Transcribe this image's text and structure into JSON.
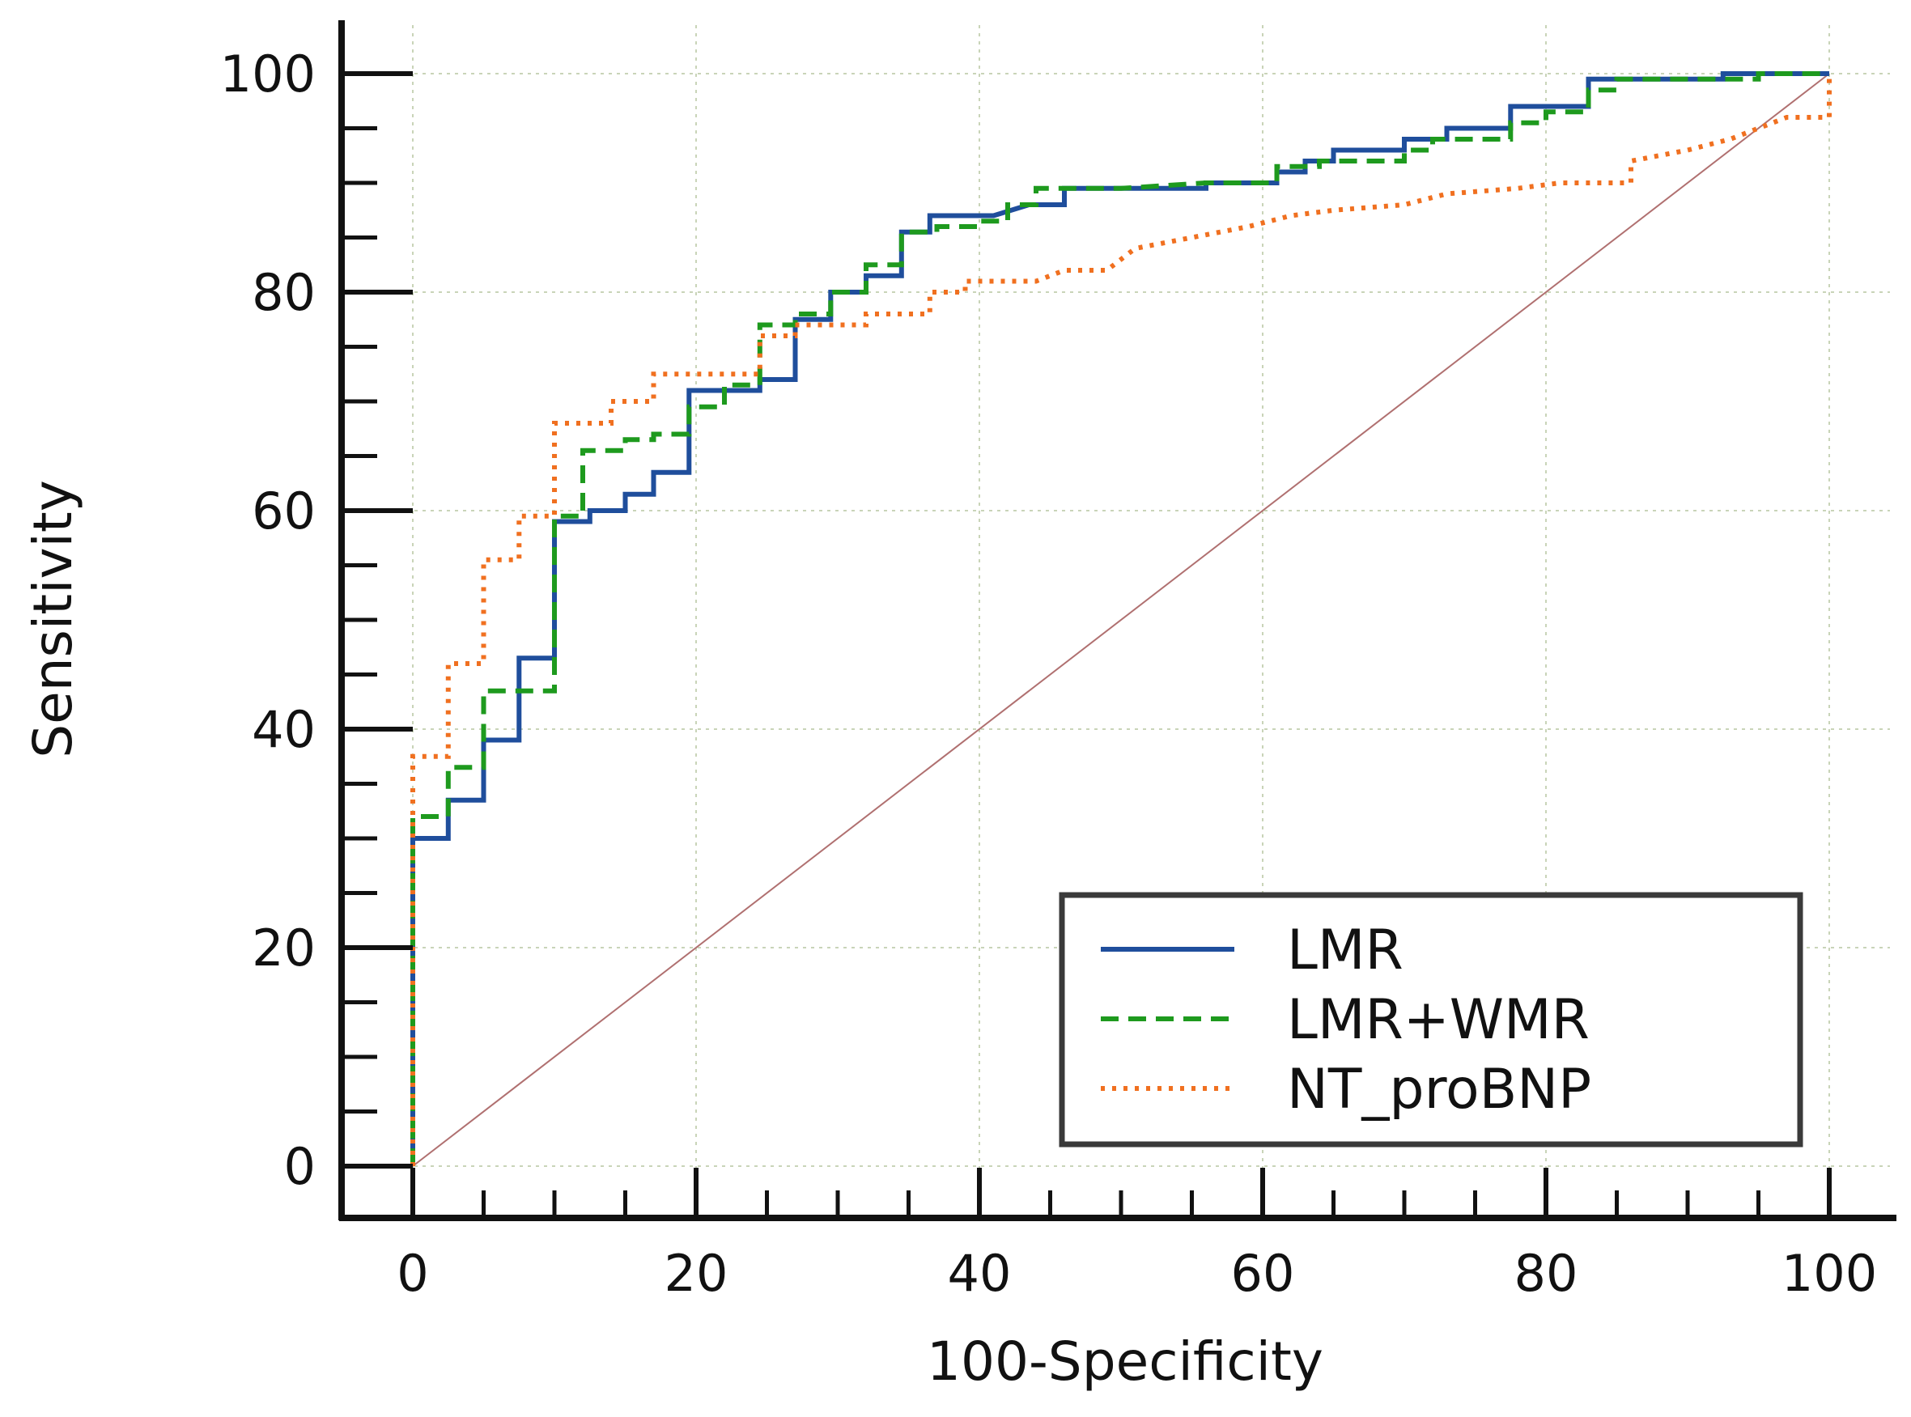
{
  "chart_data": {
    "type": "line",
    "xlabel": "100-Specificity",
    "ylabel": "Sensitivity",
    "xlim": [
      0,
      100
    ],
    "ylim": [
      0,
      100
    ],
    "xticks": [
      0,
      20,
      40,
      60,
      80,
      100
    ],
    "yticks": [
      0,
      20,
      40,
      60,
      80,
      100
    ],
    "grid": true,
    "legend_position": "bottom-right",
    "reference_line": {
      "x": [
        0,
        100
      ],
      "y": [
        0,
        100
      ],
      "color": "#b07070"
    },
    "series": [
      {
        "name": "LMR",
        "color": "#1f4e9c",
        "style": "solid",
        "points": [
          [
            0,
            0
          ],
          [
            0,
            30
          ],
          [
            2.5,
            30
          ],
          [
            2.5,
            33.5
          ],
          [
            5,
            33.5
          ],
          [
            5,
            39
          ],
          [
            7.5,
            39
          ],
          [
            7.5,
            46.5
          ],
          [
            10,
            46.5
          ],
          [
            10,
            59
          ],
          [
            12.5,
            59
          ],
          [
            12.5,
            60
          ],
          [
            15,
            60
          ],
          [
            15,
            61.5
          ],
          [
            17,
            61.5
          ],
          [
            17,
            63.5
          ],
          [
            19.5,
            63.5
          ],
          [
            19.5,
            71
          ],
          [
            22.5,
            71
          ],
          [
            24.5,
            71
          ],
          [
            24.5,
            72
          ],
          [
            27,
            72
          ],
          [
            27,
            77.5
          ],
          [
            29.5,
            77.5
          ],
          [
            29.5,
            80
          ],
          [
            32,
            80
          ],
          [
            32,
            81.5
          ],
          [
            34.5,
            81.5
          ],
          [
            34.5,
            85.5
          ],
          [
            36.5,
            85.5
          ],
          [
            36.5,
            87
          ],
          [
            41,
            87
          ],
          [
            43.5,
            88
          ],
          [
            46,
            88
          ],
          [
            46,
            89.5
          ],
          [
            56,
            89.5
          ],
          [
            56,
            90
          ],
          [
            61,
            90
          ],
          [
            61,
            91
          ],
          [
            63,
            91
          ],
          [
            63,
            92
          ],
          [
            65,
            92
          ],
          [
            65,
            93
          ],
          [
            70,
            93
          ],
          [
            70,
            94
          ],
          [
            73,
            94
          ],
          [
            73,
            95
          ],
          [
            77.5,
            95
          ],
          [
            77.5,
            97
          ],
          [
            83,
            97
          ],
          [
            83,
            99.5
          ],
          [
            92.5,
            99.5
          ],
          [
            92.5,
            100
          ],
          [
            100,
            100
          ]
        ]
      },
      {
        "name": "LMR+WMR",
        "color": "#1e9a1e",
        "style": "dashed",
        "points": [
          [
            0,
            0
          ],
          [
            0,
            32
          ],
          [
            2.5,
            32
          ],
          [
            2.5,
            36.5
          ],
          [
            5,
            36.5
          ],
          [
            5,
            43.5
          ],
          [
            7.5,
            43.5
          ],
          [
            10,
            43.5
          ],
          [
            10,
            59.5
          ],
          [
            12,
            59.5
          ],
          [
            12,
            65.5
          ],
          [
            15,
            65.5
          ],
          [
            15,
            66.5
          ],
          [
            17,
            66.5
          ],
          [
            17,
            67
          ],
          [
            19.5,
            67
          ],
          [
            19.5,
            69.5
          ],
          [
            22,
            69.5
          ],
          [
            22,
            71.5
          ],
          [
            24.5,
            71.5
          ],
          [
            24.5,
            77
          ],
          [
            27,
            77
          ],
          [
            27,
            78
          ],
          [
            29.5,
            78
          ],
          [
            29.5,
            80
          ],
          [
            32,
            80
          ],
          [
            32,
            82.5
          ],
          [
            34.5,
            82.5
          ],
          [
            34.5,
            85.5
          ],
          [
            37,
            85.5
          ],
          [
            37,
            86
          ],
          [
            40,
            86
          ],
          [
            40,
            86.5
          ],
          [
            42,
            86.5
          ],
          [
            42,
            88
          ],
          [
            44,
            88
          ],
          [
            44,
            89.5
          ],
          [
            50,
            89.5
          ],
          [
            56,
            90
          ],
          [
            61,
            90
          ],
          [
            61,
            91.5
          ],
          [
            64,
            91.5
          ],
          [
            64,
            92
          ],
          [
            70,
            92
          ],
          [
            70,
            93
          ],
          [
            72,
            93
          ],
          [
            72,
            94
          ],
          [
            77.5,
            94
          ],
          [
            77.5,
            95.5
          ],
          [
            80,
            95.5
          ],
          [
            80,
            96.5
          ],
          [
            83,
            96.5
          ],
          [
            83,
            98.5
          ],
          [
            85,
            98.5
          ],
          [
            85,
            99.5
          ],
          [
            95,
            99.5
          ],
          [
            95,
            100
          ],
          [
            100,
            100
          ]
        ]
      },
      {
        "name": "NT_proBNP",
        "color": "#f07020",
        "style": "dotted",
        "points": [
          [
            0,
            0
          ],
          [
            0,
            37.5
          ],
          [
            2.5,
            37.5
          ],
          [
            2.5,
            46
          ],
          [
            5,
            46
          ],
          [
            5,
            55.5
          ],
          [
            7.5,
            55.5
          ],
          [
            7.5,
            59.5
          ],
          [
            10,
            59.5
          ],
          [
            10,
            68
          ],
          [
            14,
            68
          ],
          [
            14,
            70
          ],
          [
            17,
            70
          ],
          [
            17,
            72.5
          ],
          [
            24.5,
            72.5
          ],
          [
            24.5,
            76
          ],
          [
            27,
            76
          ],
          [
            27,
            77
          ],
          [
            32,
            77
          ],
          [
            32,
            78
          ],
          [
            36.5,
            78
          ],
          [
            36.5,
            80
          ],
          [
            39,
            80
          ],
          [
            39,
            81
          ],
          [
            44,
            81
          ],
          [
            46,
            82
          ],
          [
            49,
            82
          ],
          [
            51,
            84
          ],
          [
            55,
            85
          ],
          [
            59,
            86
          ],
          [
            62,
            87
          ],
          [
            65,
            87.5
          ],
          [
            70,
            88
          ],
          [
            73,
            89
          ],
          [
            78,
            89.5
          ],
          [
            81,
            90
          ],
          [
            86,
            90
          ],
          [
            86,
            92
          ],
          [
            90,
            93
          ],
          [
            93,
            94
          ],
          [
            97,
            96
          ],
          [
            100,
            96
          ],
          [
            100,
            100
          ]
        ]
      }
    ]
  }
}
